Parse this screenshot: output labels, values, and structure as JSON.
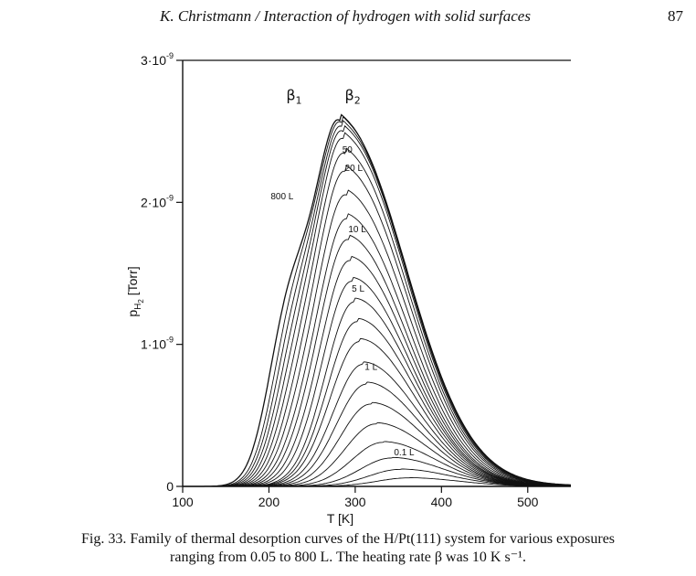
{
  "running_head": {
    "title": "K. Christmann / Interaction of hydrogen with solid surfaces",
    "page_number": "87"
  },
  "chart_data": {
    "type": "line",
    "xlabel": "T [K]",
    "ylabel": "p",
    "ylabel_subscript": "H",
    "ylabel_subsub": "2",
    "ylabel_unit": " [Torr]",
    "xlim": [
      100,
      550
    ],
    "ylim": [
      0,
      3e-09
    ],
    "xticks": [
      100,
      200,
      300,
      400,
      500
    ],
    "xtick_labels": [
      "100",
      "200",
      "300",
      "400",
      "500"
    ],
    "yticks": [
      0,
      1e-09,
      2e-09,
      3e-09
    ],
    "ytick_labels": [
      {
        "mantissa": "0",
        "exp": ""
      },
      {
        "mantissa": "1·10",
        "exp": "-9"
      },
      {
        "mantissa": "2·10",
        "exp": "-9"
      },
      {
        "mantissa": "3·10",
        "exp": "-9"
      }
    ],
    "peak_labels": [
      {
        "greek": "β",
        "sub": "1",
        "x": 220,
        "y": 2.72e-09
      },
      {
        "greek": "β",
        "sub": "2",
        "x": 288,
        "y": 2.72e-09
      }
    ],
    "exposure_labels": [
      {
        "text": "800 L",
        "x": 202,
        "y": 2.02e-09
      },
      {
        "text": "50",
        "x": 285,
        "y": 2.35e-09
      },
      {
        "text": "20 L",
        "x": 288,
        "y": 2.22e-09
      },
      {
        "text": "10 L",
        "x": 292,
        "y": 1.79e-09
      },
      {
        "text": "5 L",
        "x": 296,
        "y": 1.37e-09
      },
      {
        "text": "1 L",
        "x": 311,
        "y": 8.2e-10
      },
      {
        "text": "0.1 L",
        "x": 345,
        "y": 2.2e-10
      }
    ],
    "series": [
      {
        "label": "800 L",
        "peak_x": 282,
        "peak_y": 2.53e-09,
        "shoulder_x": 222,
        "shoulder_y": 1.95e-09
      },
      {
        "label": "50",
        "peak_x": 284,
        "peak_y": 2.51e-09,
        "shoulder_x": 226,
        "shoulder_y": 1.78e-09
      },
      {
        "label": "",
        "peak_x": 285,
        "peak_y": 2.48e-09,
        "shoulder_x": 228,
        "shoulder_y": 1.58e-09
      },
      {
        "label": "20 L",
        "peak_x": 286,
        "peak_y": 2.45e-09,
        "shoulder_x": 230,
        "shoulder_y": 1.38e-09
      },
      {
        "label": "",
        "peak_x": 287,
        "peak_y": 2.4e-09,
        "shoulder_x": 232,
        "shoulder_y": 1.18e-09
      },
      {
        "label": "",
        "peak_x": 288,
        "peak_y": 2.3e-09,
        "shoulder_x": 234,
        "shoulder_y": 9.8e-10
      },
      {
        "label": "",
        "peak_x": 289,
        "peak_y": 2.18e-09,
        "shoulder_x": 236,
        "shoulder_y": 7.8e-10
      },
      {
        "label": "",
        "peak_x": 290,
        "peak_y": 2.02e-09,
        "shoulder_x": 238,
        "shoulder_y": 6e-10
      },
      {
        "label": "10 L",
        "peak_x": 291,
        "peak_y": 1.86e-09,
        "shoulder_x": 240,
        "shoulder_y": 4.2e-10
      },
      {
        "label": "",
        "peak_x": 292,
        "peak_y": 1.72e-09,
        "shoulder_x": 242,
        "shoulder_y": 2.8e-10
      },
      {
        "label": "",
        "peak_x": 294,
        "peak_y": 1.58e-09,
        "shoulder_x": 244,
        "shoulder_y": 1.6e-10
      },
      {
        "label": "5 L",
        "peak_x": 296,
        "peak_y": 1.44e-09,
        "shoulder_x": 246,
        "shoulder_y": 7e-11
      },
      {
        "label": "",
        "peak_x": 299,
        "peak_y": 1.3e-09,
        "shoulder_x": 0,
        "shoulder_y": 0
      },
      {
        "label": "",
        "peak_x": 302,
        "peak_y": 1.16e-09,
        "shoulder_x": 0,
        "shoulder_y": 0
      },
      {
        "label": "",
        "peak_x": 305,
        "peak_y": 1.02e-09,
        "shoulder_x": 0,
        "shoulder_y": 0
      },
      {
        "label": "1 L",
        "peak_x": 309,
        "peak_y": 8.6e-10,
        "shoulder_x": 0,
        "shoulder_y": 0
      },
      {
        "label": "",
        "peak_x": 313,
        "peak_y": 7.2e-10,
        "shoulder_x": 0,
        "shoulder_y": 0
      },
      {
        "label": "",
        "peak_x": 318,
        "peak_y": 5.8e-10,
        "shoulder_x": 0,
        "shoulder_y": 0
      },
      {
        "label": "",
        "peak_x": 324,
        "peak_y": 4.4e-10,
        "shoulder_x": 0,
        "shoulder_y": 0
      },
      {
        "label": "",
        "peak_x": 332,
        "peak_y": 3.1e-10,
        "shoulder_x": 0,
        "shoulder_y": 0
      },
      {
        "label": "",
        "peak_x": 342,
        "peak_y": 2e-10,
        "shoulder_x": 0,
        "shoulder_y": 0
      },
      {
        "label": "0.1 L",
        "peak_x": 352,
        "peak_y": 1.2e-10,
        "shoulder_x": 0,
        "shoulder_y": 0
      },
      {
        "label": "",
        "peak_x": 362,
        "peak_y": 6e-11,
        "shoulder_x": 0,
        "shoulder_y": 0
      }
    ],
    "grid": false,
    "legend": "none"
  },
  "caption": {
    "line1": "Fig. 33. Family of thermal desorption curves of the H/Pt(111) system for various exposures",
    "line2": "ranging from 0.05 to 800 L. The heating rate β was 10 K s⁻¹."
  }
}
